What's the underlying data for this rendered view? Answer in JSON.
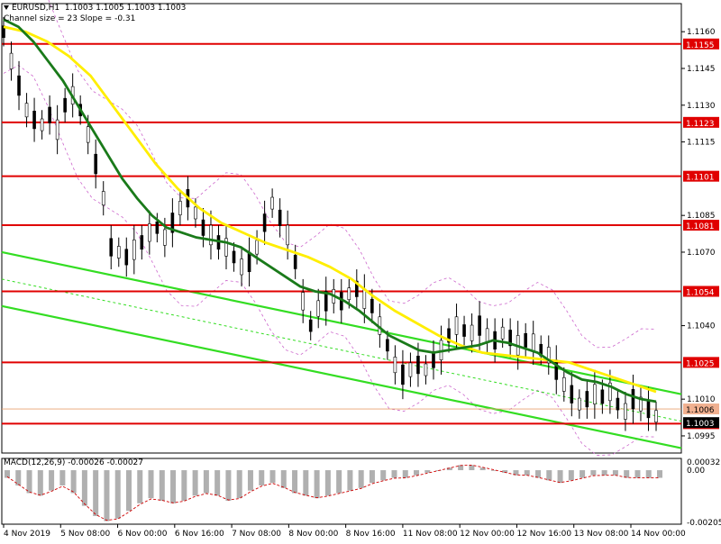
{
  "header": {
    "symbol": "EURUSD,H1",
    "ohlc": "1.1003 1.1005 1.1003 1.1003",
    "subtitle": "Channel size = 23 Slope = -0.31"
  },
  "macd": {
    "label": "MACD(12,26,9) -0.00026 -0.00027",
    "scale_top": "0.00032",
    "scale_zero": "0.00",
    "scale_bottom": "-0.00205"
  },
  "colors": {
    "support_resistance": "#e00000",
    "channel": "#33dd22",
    "fast_ma": "#1a7a1a",
    "slow_ma": "#ffee00",
    "envelope": "#cc66cc",
    "candles": "#000000",
    "price_badge": "#e00000",
    "histogram": "#b0b0b0"
  },
  "chart_data": {
    "type": "line",
    "title": "EURUSD,H1",
    "ylim": [
      1.0988,
      1.117
    ],
    "y_ticks": [
      "1.1160",
      "1.1145",
      "1.1130",
      "1.1115",
      "1.1085",
      "1.1070",
      "1.1040",
      "1.1010",
      "1.0995"
    ],
    "x_tick_labels": [
      "4 Nov 2019",
      "5 Nov 08:00",
      "6 Nov 00:00",
      "6 Nov 16:00",
      "7 Nov 08:00",
      "8 Nov 00:00",
      "8 Nov 16:00",
      "11 Nov 08:00",
      "12 Nov 00:00",
      "12 Nov 16:00",
      "13 Nov 08:00",
      "14 Nov 00:00"
    ],
    "horizontal_levels": [
      {
        "value": 1.1155,
        "label": "1.1155"
      },
      {
        "value": 1.1123,
        "label": "1.1123"
      },
      {
        "value": 1.1101,
        "label": "1.1101"
      },
      {
        "value": 1.1081,
        "label": "1.1081"
      },
      {
        "value": 1.1054,
        "label": "1.1054"
      },
      {
        "value": 1.1025,
        "label": "1.1025"
      },
      {
        "value": 1.1,
        "label": "1.1000"
      }
    ],
    "current_price": {
      "value": 1.1003,
      "label": "1.1003"
    },
    "bid_line": {
      "value": 1.1006,
      "label": "1.1006"
    },
    "channel_lines": [
      {
        "name": "channel-upper",
        "points": [
          [
            0,
            1.107
          ],
          [
            124,
            1.1012
          ]
        ]
      },
      {
        "name": "channel-lower",
        "points": [
          [
            0,
            1.1048
          ],
          [
            124,
            1.099
          ]
        ]
      },
      {
        "name": "channel-mid",
        "points": [
          [
            0,
            1.1059
          ],
          [
            124,
            1.1001
          ]
        ]
      }
    ],
    "price": [
      1.116,
      1.1148,
      1.1138,
      1.1128,
      1.1124,
      1.1122,
      1.1126,
      1.112,
      1.113,
      1.1134,
      1.1128,
      1.1118,
      1.1106,
      1.1092,
      1.1072,
      1.107,
      1.1068,
      1.1071,
      1.1074,
      1.1078,
      1.108,
      1.1076,
      1.1082,
      1.1088,
      1.1092,
      1.1086,
      1.108,
      1.1077,
      1.1074,
      1.1072,
      1.1068,
      1.1064,
      1.1066,
      1.1072,
      1.1082,
      1.109,
      1.1084,
      1.1077,
      1.1066,
      1.105,
      1.104,
      1.1047,
      1.105,
      1.1052,
      1.105,
      1.1053,
      1.1055,
      1.1051,
      1.1048,
      1.104,
      1.1032,
      1.1024,
      1.102,
      1.1022,
      1.1024,
      1.1022,
      1.1026,
      1.103,
      1.1036,
      1.104,
      1.1038,
      1.1037,
      1.104,
      1.1036,
      1.1034,
      1.1037,
      1.1035,
      1.1032,
      1.1034,
      1.1033,
      1.103,
      1.1028,
      1.1022,
      1.1016,
      1.1012,
      1.1008,
      1.101,
      1.1012,
      1.1011,
      1.1013,
      1.1008,
      1.1005,
      1.101,
      1.1008,
      1.1006,
      1.1003
    ],
    "fast_ma": [
      1.1165,
      1.1162,
      1.1156,
      1.1148,
      1.114,
      1.113,
      1.112,
      1.111,
      1.11,
      1.1092,
      1.1085,
      1.108,
      1.1078,
      1.1076,
      1.1075,
      1.1074,
      1.1072,
      1.1068,
      1.1064,
      1.106,
      1.1056,
      1.1054,
      1.1053,
      1.105,
      1.1046,
      1.1041,
      1.1036,
      1.1033,
      1.103,
      1.1029,
      1.103,
      1.1031,
      1.1032,
      1.1034,
      1.1033,
      1.1031,
      1.1029,
      1.1025,
      1.1021,
      1.1018,
      1.1017,
      1.1015,
      1.1012,
      1.101,
      1.1009
    ],
    "slow_ma": [
      1.1162,
      1.116,
      1.1156,
      1.115,
      1.1142,
      1.113,
      1.1118,
      1.1106,
      1.1096,
      1.1088,
      1.1082,
      1.1078,
      1.1074,
      1.1071,
      1.1068,
      1.1064,
      1.1059,
      1.1052,
      1.1046,
      1.1041,
      1.1036,
      1.1032,
      1.1029,
      1.1028,
      1.1027,
      1.1026,
      1.1025,
      1.1022,
      1.1019,
      1.1016,
      1.1013
    ],
    "macd_histogram": [
      -0.0003,
      -0.0006,
      -0.0009,
      -0.001,
      -0.0008,
      -0.0006,
      -0.0009,
      -0.0014,
      -0.0018,
      -0.002,
      -0.0019,
      -0.0016,
      -0.0013,
      -0.0011,
      -0.0012,
      -0.0013,
      -0.0012,
      -0.001,
      -0.0009,
      -0.001,
      -0.0012,
      -0.0011,
      -0.0008,
      -0.0006,
      -0.0005,
      -0.0007,
      -0.0009,
      -0.001,
      -0.0011,
      -0.001,
      -0.0009,
      -0.0008,
      -0.0007,
      -0.0005,
      -0.0004,
      -0.0003,
      -0.0003,
      -0.0002,
      -0.0001,
      0.0,
      0.0001,
      0.0002,
      0.0002,
      0.0001,
      0.0,
      -0.0001,
      -0.0002,
      -0.0002,
      -0.0003,
      -0.0004,
      -0.0005,
      -0.0004,
      -0.0003,
      -0.0002,
      -0.0002,
      -0.0002,
      -0.0003,
      -0.0003,
      -0.0003,
      -0.0003
    ],
    "macd_ylim": [
      -0.00205,
      0.00032
    ]
  }
}
